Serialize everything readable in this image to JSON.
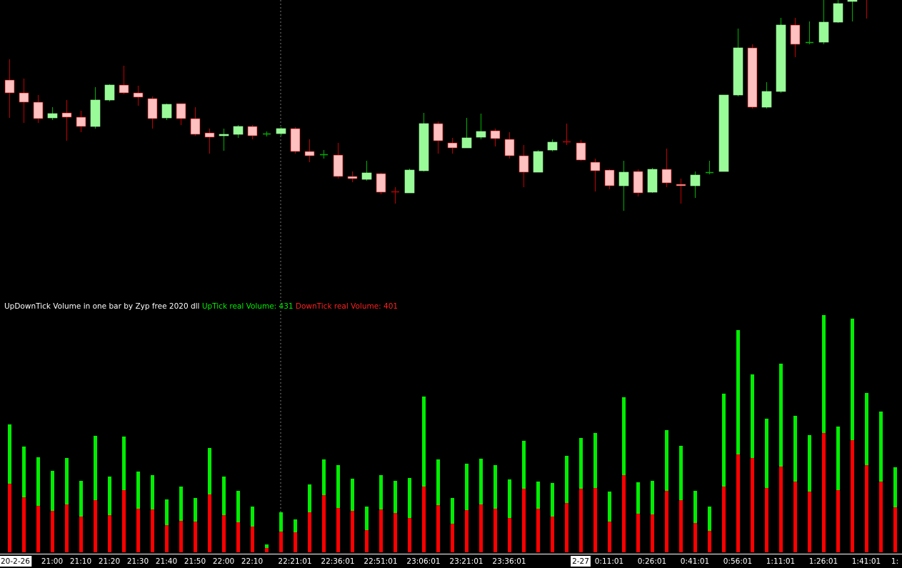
{
  "chart_data": [
    {
      "type": "candlestick",
      "ylim": [
        0,
        420
      ],
      "up_color": "#98fb98",
      "down_color": "#ffc0c0",
      "up_wick_color": "#00b000",
      "down_wick_color": "#c00000",
      "open": [
        308,
        290,
        277,
        255,
        262,
        256,
        243,
        280,
        301,
        290,
        282,
        255,
        275,
        254,
        234,
        230,
        232,
        243,
        232,
        233,
        240,
        208,
        203,
        203,
        173,
        169,
        177,
        152,
        150,
        181,
        247,
        220,
        213,
        228,
        237,
        225,
        202,
        179,
        210,
        222,
        220,
        193,
        182,
        160,
        180,
        151,
        183,
        162,
        160,
        178,
        180,
        287,
        353,
        270,
        292,
        385,
        360,
        361,
        389,
        418,
        435,
        null,
        null
      ],
      "high": [
        337,
        310,
        287,
        270,
        280,
        265,
        298,
        302,
        328,
        300,
        285,
        275,
        275,
        270,
        240,
        240,
        245,
        245,
        236,
        242,
        242,
        225,
        210,
        220,
        180,
        195,
        178,
        158,
        184,
        262,
        250,
        227,
        255,
        261,
        240,
        235,
        217,
        210,
        225,
        247,
        224,
        198,
        183,
        195,
        183,
        185,
        212,
        170,
        180,
        195,
        287,
        380,
        358,
        305,
        395,
        395,
        390,
        420,
        425,
        430,
        440,
        null,
        null
      ],
      "low": [
        255,
        248,
        248,
        252,
        223,
        235,
        240,
        278,
        288,
        272,
        240,
        252,
        245,
        230,
        205,
        209,
        227,
        225,
        229,
        230,
        205,
        193,
        198,
        170,
        165,
        167,
        148,
        135,
        150,
        180,
        205,
        205,
        213,
        225,
        215,
        198,
        158,
        179,
        208,
        217,
        195,
        152,
        155,
        125,
        145,
        150,
        158,
        135,
        143,
        176,
        180,
        285,
        268,
        268,
        290,
        340,
        358,
        358,
        388,
        390,
        394,
        null,
        null
      ],
      "close": [
        290,
        277,
        254,
        261,
        256,
        243,
        280,
        301,
        290,
        284,
        254,
        274,
        254,
        232,
        228,
        232,
        243,
        230,
        233,
        240,
        208,
        202,
        204,
        173,
        170,
        178,
        151,
        151,
        182,
        247,
        223,
        213,
        227,
        236,
        226,
        202,
        179,
        208,
        221,
        221,
        196,
        181,
        160,
        179,
        150,
        183,
        164,
        160,
        175,
        179,
        287,
        353,
        270,
        292,
        385,
        358,
        361,
        389,
        415,
        420,
        423,
        null,
        null
      ]
    },
    {
      "type": "bar",
      "stacked": true,
      "title": "UpDownTick Volume in one bar by Zyp free 2020 dll",
      "ylim": [
        0,
        340
      ],
      "categories": [
        "20-2-26",
        null,
        null,
        "21:00",
        null,
        "21:10",
        null,
        "21:20",
        null,
        "21:30",
        null,
        "21:40",
        null,
        "21:50",
        null,
        "22:00",
        null,
        "22:10",
        null,
        null,
        "22:21:01",
        null,
        null,
        "22:36:01",
        null,
        null,
        "22:51:01",
        null,
        null,
        "23:06:01",
        null,
        null,
        "23:21:01",
        null,
        null,
        "23:36:01",
        null,
        null,
        null,
        null,
        "2-27",
        null,
        "0:11:01",
        null,
        null,
        "0:26:01",
        null,
        null,
        "0:41:01",
        null,
        null,
        "0:56:01",
        null,
        null,
        "1:11:01",
        null,
        null,
        "1:26:01",
        null,
        null,
        "1:41:01",
        null,
        "1:"
      ],
      "series": [
        {
          "name": "DownTick real Volume: 401",
          "color": "#ff0000",
          "values": [
            96,
            77,
            65,
            58,
            67,
            50,
            73,
            52,
            87,
            61,
            60,
            38,
            44,
            43,
            81,
            52,
            42,
            36,
            6,
            29,
            28,
            56,
            80,
            62,
            58,
            31,
            60,
            55,
            48,
            92,
            66,
            40,
            59,
            67,
            61,
            48,
            89,
            61,
            50,
            69,
            89,
            90,
            43,
            108,
            54,
            53,
            86,
            73,
            41,
            30,
            92,
            137,
            132,
            90,
            120,
            99,
            85,
            167,
            87,
            157,
            122,
            99,
            63
          ]
        },
        {
          "name": "UpTick real Volume: 431",
          "color": "#00ee00",
          "values": [
            83,
            71,
            68,
            56,
            65,
            50,
            90,
            54,
            75,
            52,
            48,
            36,
            48,
            33,
            65,
            54,
            44,
            28,
            5,
            27,
            18,
            39,
            50,
            60,
            45,
            33,
            48,
            45,
            56,
            126,
            64,
            36,
            65,
            64,
            61,
            54,
            67,
            38,
            47,
            66,
            71,
            77,
            42,
            109,
            44,
            47,
            85,
            76,
            45,
            34,
            130,
            174,
            117,
            97,
            144,
            92,
            79,
            165,
            89,
            170,
            101,
            98,
            56
          ]
        }
      ]
    }
  ]
}
